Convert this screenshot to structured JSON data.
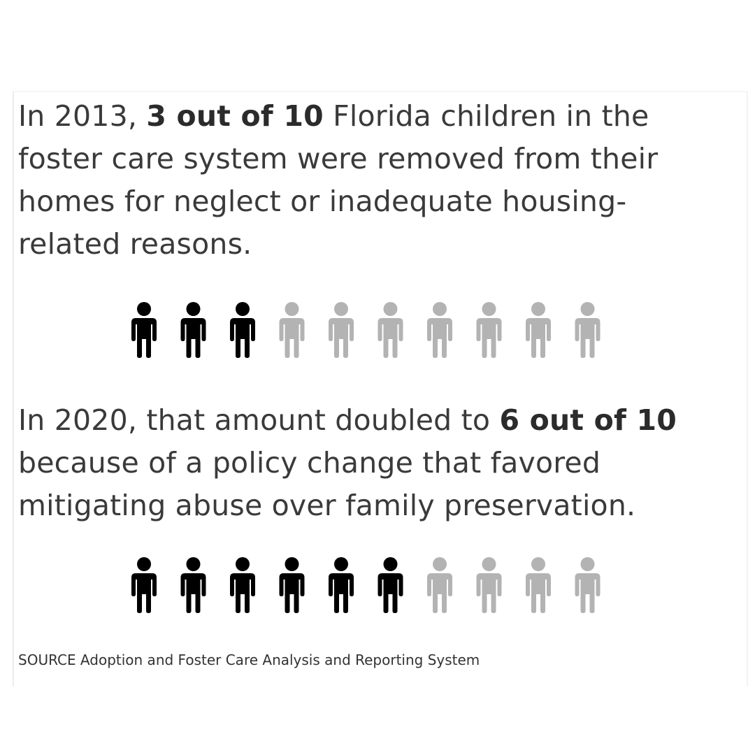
{
  "panel_2013": {
    "line1_pre": "In 2013, ",
    "line1_bold": "3 out of 10",
    "line1_post": " Florida children in the",
    "line2": "foster care system were removed from their",
    "line3": "homes for neglect or inadequate housing-",
    "line4": "related reasons."
  },
  "panel_2020": {
    "line1_pre": "In 2020, that amount doubled to ",
    "line1_bold": "6 out of 10",
    "line2": "because of a policy change that favored",
    "line3": "mitigating abuse over family preservation."
  },
  "source": "SOURCE Adoption and Foster Care Analysis and Reporting System",
  "colors": {
    "highlighted": "#000000",
    "muted": "#b3b3b3"
  },
  "chart_data": [
    {
      "type": "pictogram",
      "label": "2013",
      "total": 10,
      "highlighted": 3,
      "icon": "person-icon"
    },
    {
      "type": "pictogram",
      "label": "2020",
      "total": 10,
      "highlighted": 6,
      "icon": "person-icon"
    }
  ]
}
